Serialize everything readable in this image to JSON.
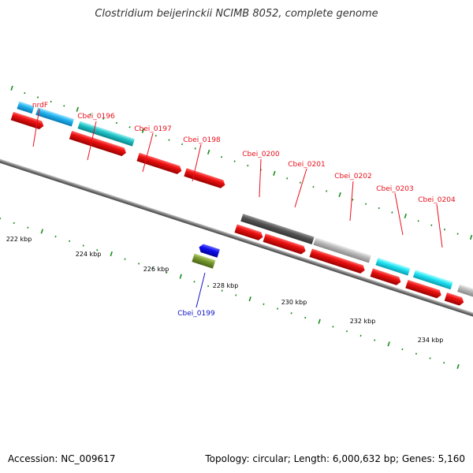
{
  "title": "Clostridium beijerinckii NCIMB 8052, complete genome",
  "footer": {
    "accession": "Accession: NC_009617",
    "summary": "Topology: circular; Length: 6,000,632 bp; Genes: 5,160"
  },
  "ticks": [
    "222 kbp",
    "224 kbp",
    "226 kbp",
    "228 kbp",
    "230 kbp",
    "232 kbp",
    "234 kbp"
  ],
  "gene_labels": [
    "nrdF",
    "Cbei_0196",
    "Cbei_0197",
    "Cbei_0198",
    "Cbei_0199",
    "Cbei_0200",
    "Cbei_0201",
    "Cbei_0202",
    "Cbei_0203",
    "Cbei_0204"
  ],
  "colors": {
    "label_forward": "#e8101c",
    "label_reverse": "#1010c8",
    "cds_red": "#ee1111",
    "tick_green": "#1a8c1a",
    "backbone": "#777777"
  }
}
